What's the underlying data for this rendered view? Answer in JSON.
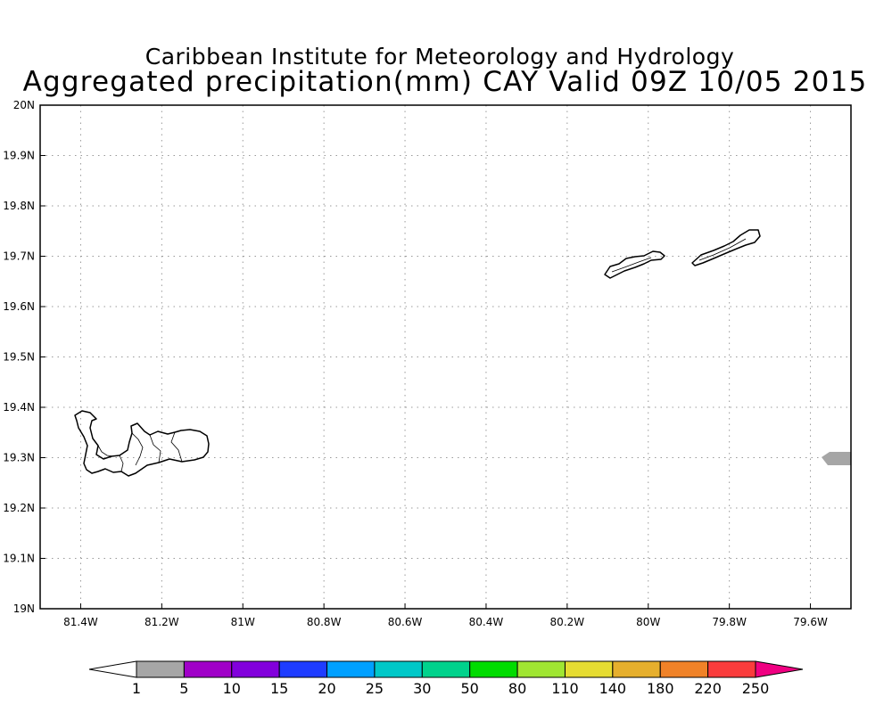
{
  "header": {
    "title_line1": "Caribbean Institute for Meteorology and Hydrology",
    "title_line2": "Aggregated precipitation(mm) CAY Valid 09Z 10/05 2015"
  },
  "map": {
    "region": "Cayman Islands",
    "lon_range": [
      -81.5,
      -79.5
    ],
    "lat_range": [
      19.0,
      20.0
    ],
    "grid": "dotted",
    "x_ticks": [
      {
        "value": -81.4,
        "label": "81.4W"
      },
      {
        "value": -81.2,
        "label": "81.2W"
      },
      {
        "value": -81.0,
        "label": "81W"
      },
      {
        "value": -80.8,
        "label": "80.8W"
      },
      {
        "value": -80.6,
        "label": "80.6W"
      },
      {
        "value": -80.4,
        "label": "80.4W"
      },
      {
        "value": -80.2,
        "label": "80.2W"
      },
      {
        "value": -80.0,
        "label": "80W"
      },
      {
        "value": -79.8,
        "label": "79.8W"
      },
      {
        "value": -79.6,
        "label": "79.6W"
      }
    ],
    "y_ticks": [
      {
        "value": 20.0,
        "label": "20N"
      },
      {
        "value": 19.9,
        "label": "19.9N"
      },
      {
        "value": 19.8,
        "label": "19.8N"
      },
      {
        "value": 19.7,
        "label": "19.7N"
      },
      {
        "value": 19.6,
        "label": "19.6N"
      },
      {
        "value": 19.5,
        "label": "19.5N"
      },
      {
        "value": 19.4,
        "label": "19.4N"
      },
      {
        "value": 19.3,
        "label": "19.3N"
      },
      {
        "value": 19.2,
        "label": "19.2N"
      },
      {
        "value": 19.1,
        "label": "19.1N"
      },
      {
        "value": 19.0,
        "label": "19N"
      }
    ],
    "precip_patch": {
      "lon": -79.5,
      "lat": 19.3,
      "bin": "1-5",
      "color": "#a6a6a6"
    }
  },
  "colorbar": {
    "labels": [
      "1",
      "5",
      "10",
      "15",
      "20",
      "25",
      "30",
      "50",
      "80",
      "110",
      "140",
      "180",
      "220",
      "250"
    ],
    "colors": [
      "#ffffff",
      "#a6a6a6",
      "#a000c8",
      "#8200dc",
      "#1e3cff",
      "#00a0ff",
      "#00c8c8",
      "#00d28c",
      "#00dc00",
      "#a0e632",
      "#e6dc32",
      "#e6af2d",
      "#f08228",
      "#fa3c3c",
      "#f00082"
    ]
  }
}
